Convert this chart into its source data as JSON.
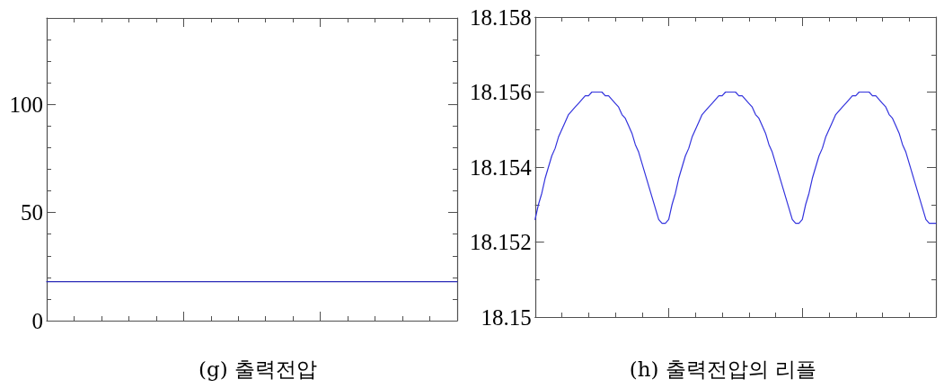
{
  "chart_data": [
    {
      "type": "line",
      "title": "(g) 출력전압",
      "categories": [
        null,
        null,
        null,
        null,
        null,
        null,
        null,
        null,
        null,
        null,
        null,
        null,
        null,
        null,
        null,
        null
      ],
      "series": [
        {
          "color": "#2a2ab8",
          "values": [
            18,
            18,
            18,
            18,
            18,
            18,
            18,
            18,
            18,
            18,
            18,
            18,
            18,
            18,
            18,
            18
          ]
        }
      ],
      "ylim": [
        0,
        140
      ],
      "yticks": [
        0,
        {
          "value": 10,
          "label": null
        },
        {
          "value": 20,
          "label": null
        },
        {
          "value": 30,
          "label": null
        },
        {
          "value": 40,
          "label": null
        },
        50,
        {
          "value": 60,
          "label": null
        },
        {
          "value": 70,
          "label": null
        },
        {
          "value": 80,
          "label": null
        },
        {
          "value": 90,
          "label": null
        },
        100,
        {
          "value": 110,
          "label": null
        },
        {
          "value": 120,
          "label": null
        },
        {
          "value": 130,
          "label": null
        }
      ],
      "tick_labels": "y"
    },
    {
      "type": "line",
      "title": "(h) 출력전압의 리플",
      "categories": [
        null,
        null,
        null,
        null,
        null,
        null,
        null,
        null,
        null,
        null,
        null,
        null,
        null,
        null,
        null,
        null,
        null,
        null,
        null,
        null,
        null,
        null,
        null,
        null,
        null,
        null,
        null,
        null,
        null,
        null,
        null,
        null,
        null,
        null,
        null,
        null,
        null,
        null,
        null,
        null,
        null,
        null,
        null,
        null,
        null,
        null,
        null,
        null,
        null,
        null,
        null,
        null,
        null,
        null,
        null,
        null,
        null,
        null,
        null,
        null,
        null,
        null,
        null,
        null,
        null,
        null,
        null,
        null,
        null,
        null,
        null,
        null,
        null,
        null,
        null,
        null,
        null,
        null,
        null,
        null,
        null,
        null,
        null,
        null,
        null,
        null,
        null,
        null,
        null,
        null,
        null,
        null,
        null,
        null,
        null,
        null,
        null,
        null,
        null,
        null,
        null,
        null,
        null,
        null,
        null,
        null,
        null,
        null,
        null,
        null,
        null,
        null,
        null,
        null,
        null,
        null,
        null,
        null,
        null,
        null,
        null
      ],
      "series": [
        {
          "color": "#3333dd",
          "values": [
            18.1526,
            18.153,
            18.1533,
            18.1537,
            18.154,
            18.1543,
            18.1545,
            18.1548,
            18.155,
            18.1552,
            18.1554,
            18.1555,
            18.1556,
            18.1557,
            18.1558,
            18.1559,
            18.1559,
            18.156,
            18.156,
            18.156,
            18.156,
            18.1559,
            18.1559,
            18.1558,
            18.1557,
            18.1556,
            18.1554,
            18.1553,
            18.1551,
            18.1549,
            18.1546,
            18.1544,
            18.1541,
            18.1538,
            18.1535,
            18.1532,
            18.1529,
            18.1526,
            18.1525,
            18.1525,
            18.1526,
            18.153,
            18.1533,
            18.1537,
            18.154,
            18.1543,
            18.1545,
            18.1548,
            18.155,
            18.1552,
            18.1554,
            18.1555,
            18.1556,
            18.1557,
            18.1558,
            18.1559,
            18.1559,
            18.156,
            18.156,
            18.156,
            18.156,
            18.1559,
            18.1559,
            18.1558,
            18.1557,
            18.1556,
            18.1554,
            18.1553,
            18.1551,
            18.1549,
            18.1546,
            18.1544,
            18.1541,
            18.1538,
            18.1535,
            18.1532,
            18.1529,
            18.1526,
            18.1525,
            18.1525,
            18.1526,
            18.153,
            18.1533,
            18.1537,
            18.154,
            18.1543,
            18.1545,
            18.1548,
            18.155,
            18.1552,
            18.1554,
            18.1555,
            18.1556,
            18.1557,
            18.1558,
            18.1559,
            18.1559,
            18.156,
            18.156,
            18.156,
            18.156,
            18.1559,
            18.1559,
            18.1558,
            18.1557,
            18.1556,
            18.1554,
            18.1553,
            18.1551,
            18.1549,
            18.1546,
            18.1544,
            18.1541,
            18.1538,
            18.1535,
            18.1532,
            18.1529,
            18.1526,
            18.1525,
            18.1525,
            18.1525
          ]
        }
      ],
      "ylim": [
        18.15,
        18.158
      ],
      "yticks": [
        18.15,
        {
          "value": 18.151,
          "label": null
        },
        18.152,
        {
          "value": 18.153,
          "label": null
        },
        18.154,
        {
          "value": 18.155,
          "label": null
        },
        18.156,
        {
          "value": 18.157,
          "label": null
        },
        18.158
      ],
      "tick_labels": "y"
    }
  ]
}
